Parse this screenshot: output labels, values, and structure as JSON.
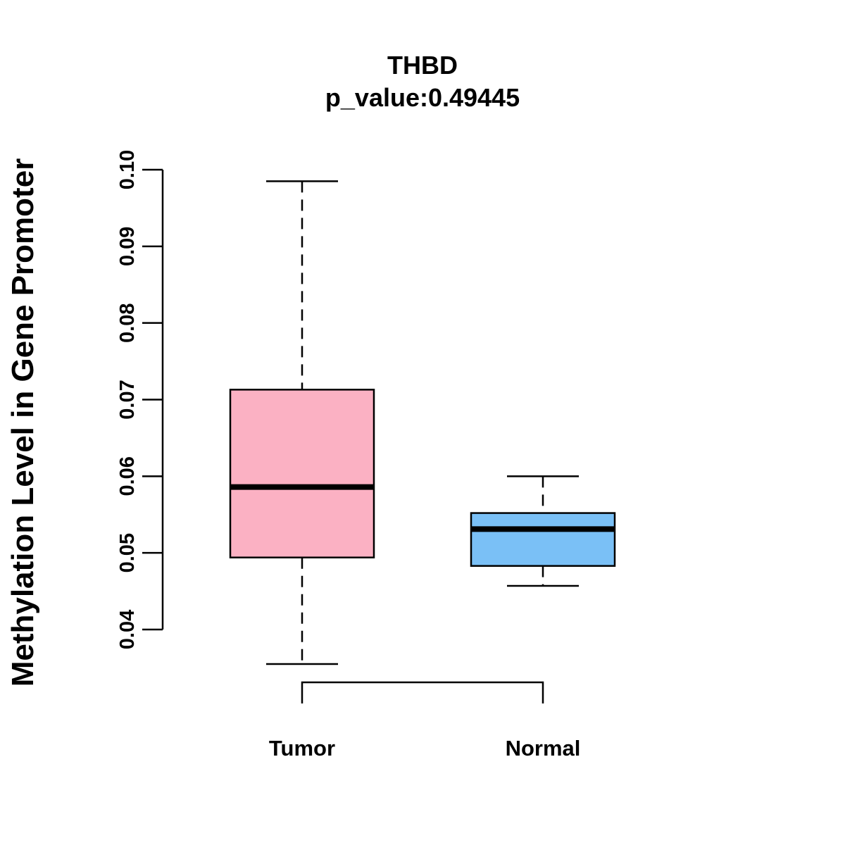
{
  "chart_data": {
    "type": "boxplot",
    "title": "THBD",
    "subtitle": "p_value:0.49445",
    "xlabel": "",
    "ylabel": "Methylation Level in Gene Promoter",
    "ylim": [
      0.04,
      0.1
    ],
    "yticks": [
      0.04,
      0.05,
      0.06,
      0.07,
      0.08,
      0.09,
      0.1
    ],
    "ytick_labels": [
      "0.04",
      "0.05",
      "0.06",
      "0.07",
      "0.08",
      "0.09",
      "0.10"
    ],
    "grid": false,
    "categories": [
      "Tumor",
      "Normal"
    ],
    "boxes": [
      {
        "name": "Tumor",
        "min": 0.0355,
        "q1": 0.0494,
        "median": 0.0586,
        "q3": 0.0713,
        "max": 0.0985,
        "color": "#FBB1C3"
      },
      {
        "name": "Normal",
        "min": 0.0457,
        "q1": 0.0483,
        "median": 0.0531,
        "q3": 0.0552,
        "max": 0.06,
        "color": "#7AC0F6"
      }
    ],
    "significance_bracket": {
      "from": "Tumor",
      "to": "Normal"
    }
  }
}
